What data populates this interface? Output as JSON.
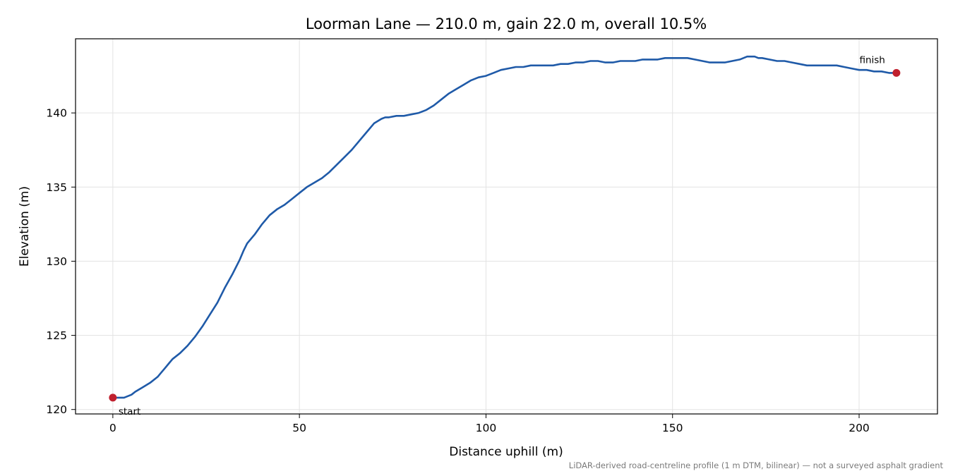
{
  "chart_data": {
    "type": "line",
    "title": "Loorman Lane — 210.0 m, gain 22.0 m, overall 10.5%",
    "xlabel": "Distance uphill (m)",
    "ylabel": "Elevation (m)",
    "xlim": [
      -10,
      221
    ],
    "ylim": [
      119.7,
      145.0
    ],
    "xticks": [
      0,
      50,
      100,
      150,
      200
    ],
    "yticks": [
      120,
      125,
      130,
      135,
      140
    ],
    "grid": true,
    "footnote": "LiDAR-derived road-centreline profile (1 m DTM, bilinear) — not a surveyed asphalt gradient",
    "series": [
      {
        "color": "#1f5aa8",
        "x": [
          0,
          1,
          2,
          3,
          4,
          5,
          6,
          8,
          10,
          12,
          13,
          14,
          15,
          16,
          18,
          20,
          22,
          24,
          26,
          28,
          30,
          32,
          34,
          35,
          36,
          38,
          40,
          42,
          44,
          46,
          48,
          50,
          52,
          54,
          56,
          58,
          60,
          62,
          64,
          66,
          68,
          70,
          72,
          73,
          74,
          76,
          78,
          80,
          82,
          84,
          86,
          88,
          90,
          92,
          94,
          96,
          97,
          98,
          100,
          102,
          104,
          106,
          108,
          110,
          112,
          114,
          116,
          118,
          120,
          122,
          124,
          126,
          128,
          130,
          132,
          134,
          136,
          138,
          140,
          142,
          144,
          146,
          148,
          150,
          152,
          154,
          156,
          158,
          160,
          162,
          164,
          166,
          168,
          170,
          171,
          172,
          173,
          174,
          176,
          178,
          180,
          182,
          184,
          186,
          188,
          190,
          192,
          194,
          196,
          198,
          200,
          202,
          204,
          206,
          208,
          210
        ],
        "y": [
          120.8,
          120.8,
          120.8,
          120.8,
          120.9,
          121.0,
          121.2,
          121.5,
          121.8,
          122.2,
          122.5,
          122.8,
          123.1,
          123.4,
          123.8,
          124.3,
          124.9,
          125.6,
          126.4,
          127.2,
          128.2,
          129.1,
          130.1,
          130.7,
          131.2,
          131.8,
          132.5,
          133.1,
          133.5,
          133.8,
          134.2,
          134.6,
          135.0,
          135.3,
          135.6,
          136.0,
          136.5,
          137.0,
          137.5,
          138.1,
          138.7,
          139.3,
          139.6,
          139.7,
          139.7,
          139.8,
          139.8,
          139.9,
          140.0,
          140.2,
          140.5,
          140.9,
          141.3,
          141.6,
          141.9,
          142.2,
          142.3,
          142.4,
          142.5,
          142.7,
          142.9,
          143.0,
          143.1,
          143.1,
          143.2,
          143.2,
          143.2,
          143.2,
          143.3,
          143.3,
          143.4,
          143.4,
          143.5,
          143.5,
          143.4,
          143.4,
          143.5,
          143.5,
          143.5,
          143.6,
          143.6,
          143.6,
          143.7,
          143.7,
          143.7,
          143.7,
          143.6,
          143.5,
          143.4,
          143.4,
          143.4,
          143.5,
          143.6,
          143.8,
          143.8,
          143.8,
          143.7,
          143.7,
          143.6,
          143.5,
          143.5,
          143.4,
          143.3,
          143.2,
          143.2,
          143.2,
          143.2,
          143.2,
          143.1,
          143.0,
          142.9,
          142.9,
          142.8,
          142.8,
          142.7,
          142.7
        ]
      }
    ],
    "markers": [
      {
        "x": 0,
        "y": 120.8,
        "label": "start",
        "color": "#c0202e"
      },
      {
        "x": 210,
        "y": 142.7,
        "label": "finish",
        "color": "#c0202e"
      }
    ]
  }
}
